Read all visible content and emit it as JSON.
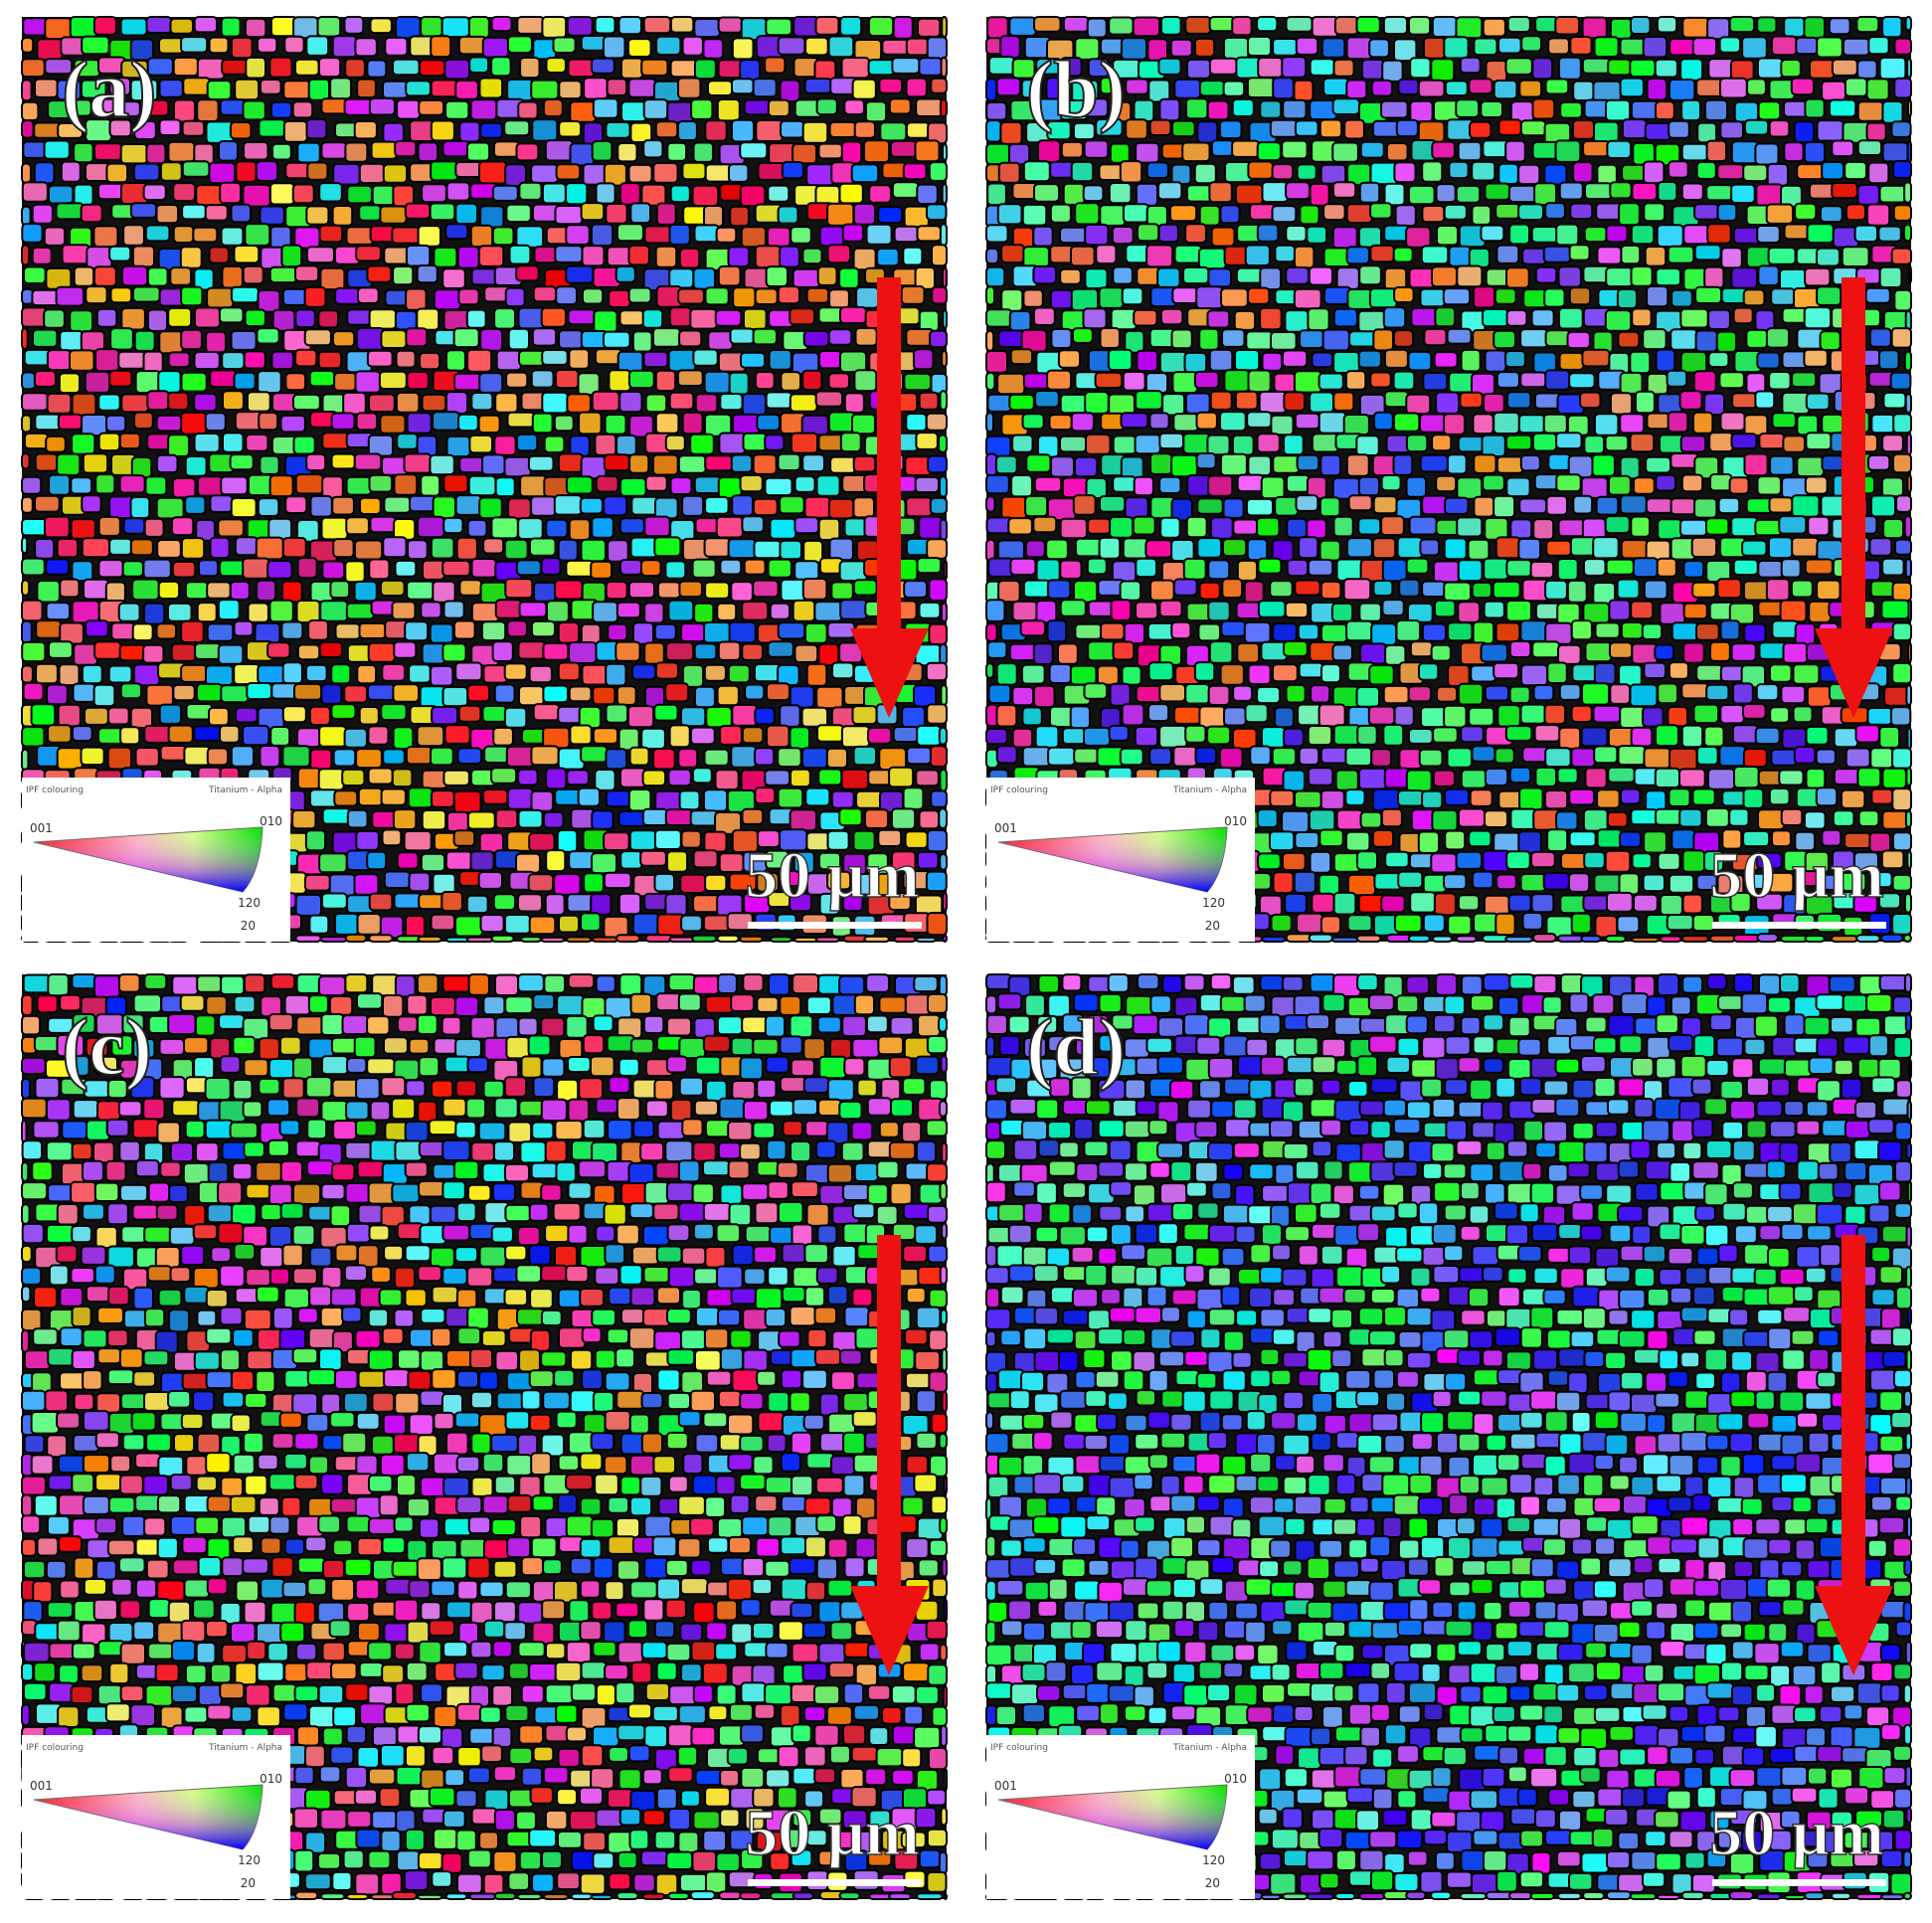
{
  "panels": [
    {
      "label": "(a)",
      "scale_bar": "50 µm",
      "legend": {
        "title": "IPF colouring",
        "phase": "Titanium - Alpha",
        "corners": [
          "001",
          "010",
          "120",
          "20"
        ]
      }
    },
    {
      "label": "(b)",
      "scale_bar": "50 µm",
      "legend": {
        "title": "IPF colouring",
        "phase": "Titanium - Alpha",
        "corners": [
          "001",
          "010",
          "120",
          "20"
        ]
      }
    },
    {
      "label": "(c)",
      "scale_bar": "50 µm",
      "legend": {
        "title": "IPF colouring",
        "phase": "Titanium - Alpha",
        "corners": [
          "001",
          "010",
          "120",
          "20"
        ]
      }
    },
    {
      "label": "(d)",
      "scale_bar": "50 µm",
      "legend": {
        "title": "IPF colouring",
        "phase": "Titanium - Alpha",
        "corners": [
          "001",
          "010",
          "120",
          "20"
        ]
      }
    }
  ]
}
